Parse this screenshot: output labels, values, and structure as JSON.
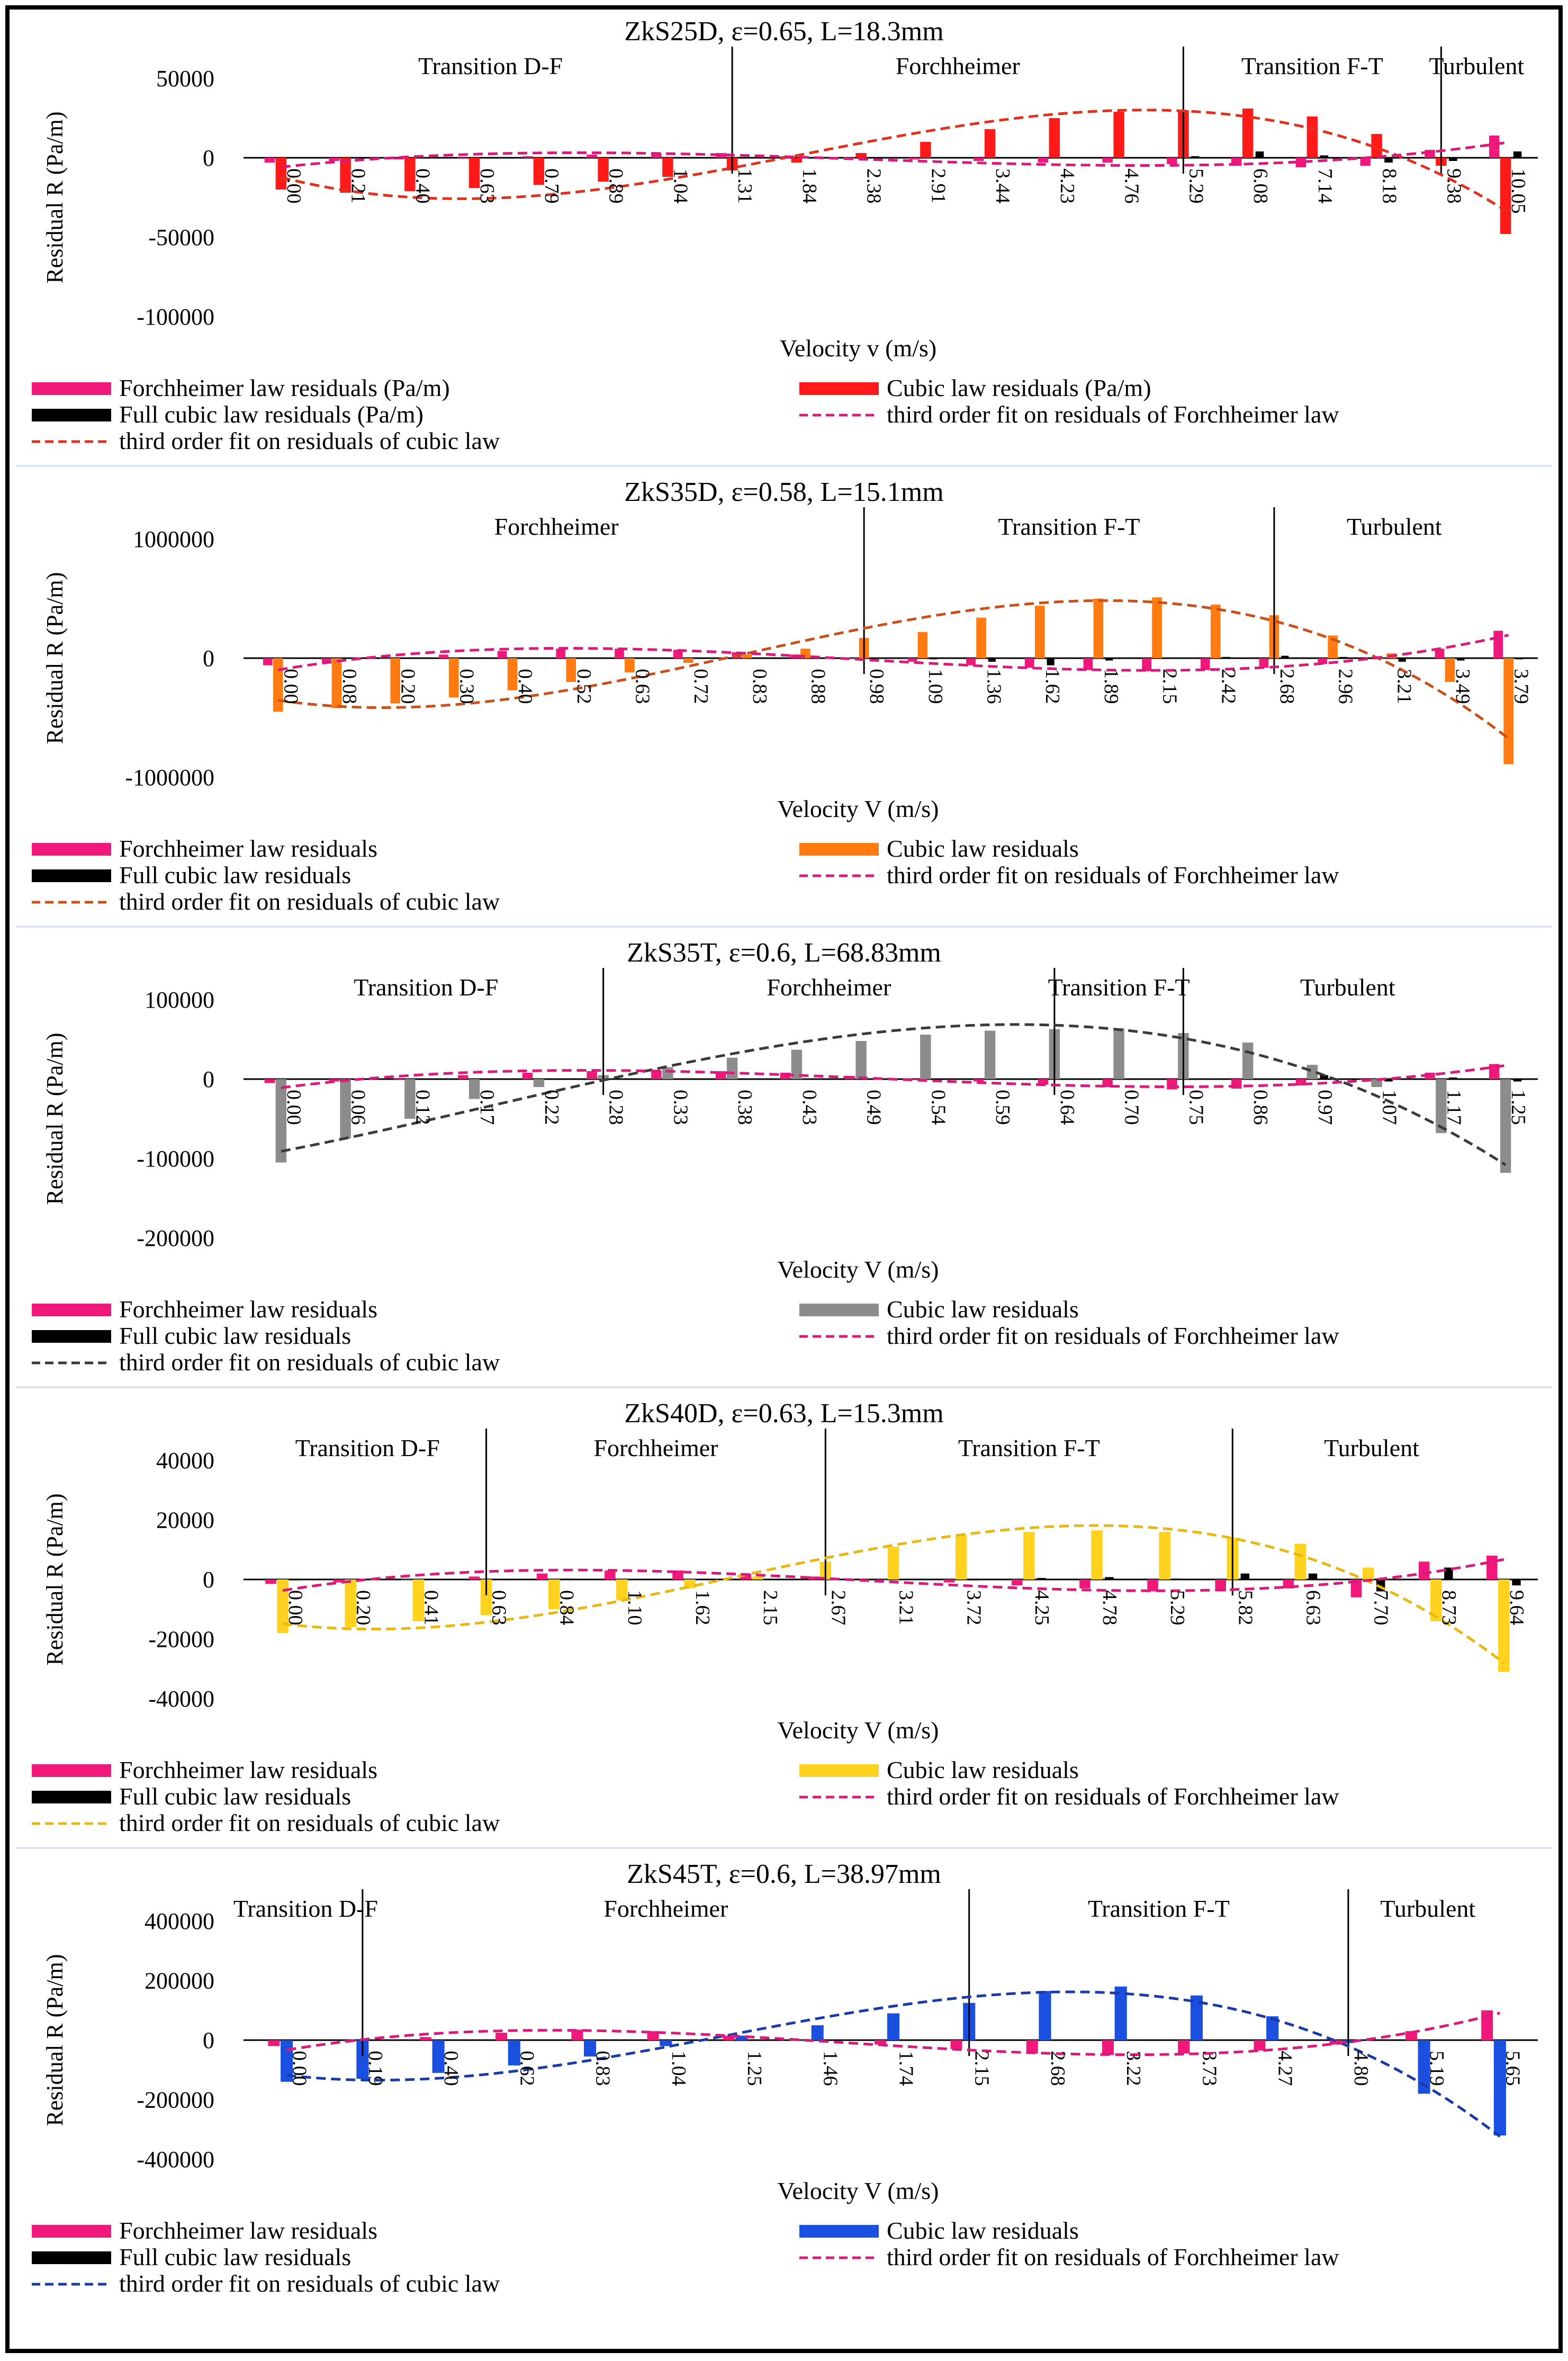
{
  "chart_data": [
    {
      "type": "bar",
      "title": "ZkS25D, ε=0.65, L=18.3mm",
      "xlabel": "Velocity v (m/s)",
      "ylabel": "Residual R (Pa/m)",
      "ylim": [
        -100000,
        50000
      ],
      "yticks": [
        "-100000",
        "-50000",
        "0",
        "50000"
      ],
      "categories": [
        "0.00",
        "0.21",
        "0.40",
        "0.63",
        "0.79",
        "0.89",
        "1.04",
        "1.31",
        "1.84",
        "2.38",
        "2.91",
        "3.44",
        "4.23",
        "4.76",
        "5.29",
        "6.08",
        "7.14",
        "8.18",
        "9.38",
        "10.05"
      ],
      "cubic_color": "#ff1a1a",
      "fit_color": "#e0301e",
      "regions": [
        {
          "label": "Transition D-F",
          "start": 0,
          "end": 7.5
        },
        {
          "label": "Forchheimer",
          "start": 7.5,
          "end": 14.5
        },
        {
          "label": "Transition F-T",
          "start": 14.5,
          "end": 18.5
        },
        {
          "label": "Turbulent",
          "start": 18.5,
          "end": 19.6
        }
      ],
      "series": [
        {
          "name": "Forchheimer law residuals (Pa/m)",
          "values": [
            -3000,
            -2000,
            -1000,
            0,
            1000,
            2000,
            3000,
            3000,
            1000,
            0,
            -1000,
            -2000,
            -3000,
            -3000,
            -4000,
            -5000,
            -6000,
            -5000,
            5000,
            14000
          ]
        },
        {
          "name": "Cubic law residuals (Pa/m)",
          "values": [
            -20000,
            -22000,
            -21000,
            -19000,
            -17000,
            -15000,
            -12000,
            -8000,
            -3000,
            3000,
            10000,
            18000,
            25000,
            29000,
            30000,
            31000,
            26000,
            15000,
            -5000,
            -48000
          ]
        },
        {
          "name": "Full cubic law residuals (Pa/m)",
          "values": [
            -500,
            -400,
            -300,
            -200,
            0,
            200,
            300,
            400,
            300,
            100,
            0,
            -200,
            -400,
            -500,
            1000,
            4000,
            1500,
            -3000,
            -2000,
            4000
          ]
        }
      ],
      "legend": {
        "forchheimer": "Forchheimer law residuals (Pa/m)",
        "cubic": "Cubic law residuals (Pa/m)",
        "full": "Full cubic law residuals (Pa/m)",
        "fit_forch": "third order fit on residuals of Forchheimer law",
        "fit_cubic": "third order fit on residuals of cubic law"
      }
    },
    {
      "type": "bar",
      "title": "ZkS35D, ε=0.58, L=15.1mm",
      "xlabel": "Velocity V (m/s)",
      "ylabel": "Residual R (Pa/m)",
      "ylim": [
        -1000000,
        1000000
      ],
      "yticks": [
        "-1000000",
        "0",
        "1000000"
      ],
      "categories": [
        "0.00",
        "0.08",
        "0.20",
        "0.30",
        "0.40",
        "0.52",
        "0.63",
        "0.72",
        "0.83",
        "0.88",
        "0.98",
        "1.09",
        "1.36",
        "1.62",
        "1.89",
        "2.15",
        "2.42",
        "2.68",
        "2.96",
        "3.21",
        "3.49",
        "3.79"
      ],
      "cubic_color": "#ff7a10",
      "fit_color": "#c8501a",
      "regions": [
        {
          "label": "Forchheimer",
          "start": 0,
          "end": 10.5
        },
        {
          "label": "Transition F-T",
          "start": 10.5,
          "end": 17.5
        },
        {
          "label": "Turbulent",
          "start": 17.5,
          "end": 21.6
        }
      ],
      "series": [
        {
          "name": "Forchheimer law residuals",
          "values": [
            -60000,
            -30000,
            0,
            30000,
            60000,
            80000,
            80000,
            70000,
            50000,
            30000,
            0,
            -30000,
            -60000,
            -80000,
            -100000,
            -110000,
            -100000,
            -80000,
            -50000,
            0,
            80000,
            230000
          ]
        },
        {
          "name": "Cubic law residuals",
          "values": [
            -450000,
            -420000,
            -380000,
            -330000,
            -270000,
            -200000,
            -120000,
            -40000,
            30000,
            80000,
            170000,
            220000,
            340000,
            440000,
            500000,
            510000,
            450000,
            360000,
            190000,
            40000,
            -200000,
            -890000
          ]
        },
        {
          "name": "Full cubic law residuals",
          "values": [
            -5000,
            -3000,
            0,
            3000,
            5000,
            6000,
            6000,
            4000,
            2000,
            0,
            -5000,
            -10000,
            -30000,
            -60000,
            -20000,
            0,
            10000,
            20000,
            10000,
            -30000,
            -20000,
            -10000
          ]
        }
      ],
      "legend": {
        "forchheimer": "Forchheimer law residuals",
        "cubic": "Cubic law residuals",
        "full": "Full cubic law residuals",
        "fit_forch": "third order fit on residuals of Forchheimer law",
        "fit_cubic": "third order fit on residuals of cubic law"
      }
    },
    {
      "type": "bar",
      "title": "ZkS35T, ε=0.6, L=68.83mm",
      "xlabel": "Velocity V (m/s)",
      "ylabel": "Residual R (Pa/m)",
      "ylim": [
        -200000,
        100000
      ],
      "yticks": [
        "-200000",
        "-100000",
        "0",
        "100000"
      ],
      "categories": [
        "0.00",
        "0.06",
        "0.12",
        "0.17",
        "0.22",
        "0.28",
        "0.33",
        "0.38",
        "0.43",
        "0.49",
        "0.54",
        "0.59",
        "0.64",
        "0.70",
        "0.75",
        "0.86",
        "0.97",
        "1.07",
        "1.17",
        "1.25"
      ],
      "cubic_color": "#8c8c8c",
      "fit_color": "#3a3a3a",
      "regions": [
        {
          "label": "Transition D-F",
          "start": 0,
          "end": 5.5
        },
        {
          "label": "Forchheimer",
          "start": 5.5,
          "end": 12.5
        },
        {
          "label": "Transition F-T",
          "start": 12.5,
          "end": 14.5
        },
        {
          "label": "Turbulent",
          "start": 14.5,
          "end": 19.6
        }
      ],
      "series": [
        {
          "name": "Forchheimer law residuals",
          "values": [
            -5000,
            -3000,
            0,
            5000,
            8000,
            10000,
            11000,
            10000,
            8000,
            4000,
            0,
            -3000,
            -7000,
            -10000,
            -13000,
            -12000,
            -8000,
            0,
            8000,
            19000
          ]
        },
        {
          "name": "Cubic law residuals",
          "values": [
            -105000,
            -75000,
            -50000,
            -25000,
            -10000,
            5000,
            15000,
            27000,
            37000,
            48000,
            56000,
            61000,
            63000,
            64000,
            58000,
            46000,
            18000,
            -10000,
            -68000,
            -118000
          ]
        },
        {
          "name": "Full cubic law residuals",
          "values": [
            -1000,
            -1000,
            -500,
            0,
            500,
            1000,
            1000,
            500,
            0,
            -500,
            -1000,
            -1000,
            -500,
            0,
            500,
            1000,
            5000,
            -3000,
            2000,
            -3000
          ]
        }
      ],
      "legend": {
        "forchheimer": "Forchheimer law residuals",
        "cubic": "Cubic law residuals",
        "full": "Full cubic law residuals",
        "fit_forch": "third order fit on residuals of Forchheimer law",
        "fit_cubic": "third order fit on residuals of cubic law"
      }
    },
    {
      "type": "bar",
      "title": "ZkS40D, ε=0.63, L=15.3mm",
      "xlabel": "Velocity V (m/s)",
      "ylabel": "Residual R (Pa/m)",
      "ylim": [
        -40000,
        40000
      ],
      "yticks": [
        "-40000",
        "-20000",
        "0",
        "20000",
        "40000"
      ],
      "categories": [
        "0.00",
        "0.20",
        "0.41",
        "0.63",
        "0.84",
        "1.10",
        "1.62",
        "2.15",
        "2.67",
        "3.21",
        "3.72",
        "4.25",
        "4.78",
        "5.29",
        "5.82",
        "6.63",
        "7.70",
        "8.73",
        "9.64"
      ],
      "cubic_color": "#ffd21f",
      "fit_color": "#e8b810",
      "regions": [
        {
          "label": "Transition D-F",
          "start": 0,
          "end": 3.5
        },
        {
          "label": "Forchheimer",
          "start": 3.5,
          "end": 8.5
        },
        {
          "label": "Transition F-T",
          "start": 8.5,
          "end": 14.5
        },
        {
          "label": "Turbulent",
          "start": 14.5,
          "end": 18.6
        }
      ],
      "series": [
        {
          "name": "Forchheimer law residuals",
          "values": [
            -1500,
            -1000,
            0,
            1000,
            2000,
            3000,
            3000,
            2000,
            1000,
            0,
            -1000,
            -2000,
            -3000,
            -4000,
            -4000,
            -3000,
            -6000,
            6000,
            8000
          ]
        },
        {
          "name": "Cubic law residuals",
          "values": [
            -18000,
            -16000,
            -14000,
            -12000,
            -10000,
            -7000,
            -3000,
            1000,
            6000,
            11000,
            15000,
            16000,
            16500,
            16000,
            14000,
            12000,
            4000,
            -14000,
            -31000
          ]
        },
        {
          "name": "Full cubic law residuals",
          "values": [
            -300,
            -200,
            0,
            200,
            300,
            200,
            100,
            0,
            -100,
            -200,
            -300,
            500,
            800,
            300,
            2000,
            2000,
            -4000,
            4000,
            -2000
          ]
        }
      ],
      "legend": {
        "forchheimer": "Forchheimer law residuals",
        "cubic": "Cubic law residuals",
        "full": "Full cubic law residuals",
        "fit_forch": "third order fit on residuals of Forchheimer law",
        "fit_cubic": "third order fit on residuals of cubic law"
      }
    },
    {
      "type": "bar",
      "title": "ZkS45T, ε=0.6, L=38.97mm",
      "xlabel": "Velocity V (m/s)",
      "ylabel": "Residual R (Pa/m)",
      "ylim": [
        -400000,
        400000
      ],
      "yticks": [
        "-400000",
        "-200000",
        "0",
        "200000",
        "400000"
      ],
      "categories": [
        "0.00",
        "0.19",
        "0.40",
        "0.62",
        "0.83",
        "1.04",
        "1.25",
        "1.46",
        "1.74",
        "2.15",
        "2.68",
        "3.22",
        "3.73",
        "4.27",
        "4.80",
        "5.19",
        "5.65"
      ],
      "cubic_color": "#1a4fe0",
      "fit_color": "#1a3aa8",
      "regions": [
        {
          "label": "Transition D-F",
          "start": 0,
          "end": 1.5
        },
        {
          "label": "Forchheimer",
          "start": 1.5,
          "end": 9.5
        },
        {
          "label": "Transition F-T",
          "start": 9.5,
          "end": 14.5
        },
        {
          "label": "Turbulent",
          "start": 14.5,
          "end": 16.6
        }
      ],
      "series": [
        {
          "name": "Forchheimer law residuals",
          "values": [
            -20000,
            -5000,
            10000,
            25000,
            35000,
            30000,
            15000,
            0,
            -15000,
            -30000,
            -45000,
            -50000,
            -45000,
            -35000,
            -15000,
            30000,
            100000
          ]
        },
        {
          "name": "Cubic law residuals",
          "values": [
            -140000,
            -130000,
            -110000,
            -85000,
            -55000,
            -20000,
            15000,
            50000,
            90000,
            125000,
            165000,
            180000,
            150000,
            80000,
            -10000,
            -180000,
            -320000
          ]
        },
        {
          "name": "Full cubic law residuals",
          "values": [
            -2000,
            -1000,
            0,
            1000,
            2000,
            1000,
            0,
            -1000,
            -2000,
            -1000,
            0,
            1000,
            2000,
            1000,
            0,
            -1000,
            -2000
          ]
        }
      ],
      "legend": {
        "forchheimer": "Forchheimer law residuals",
        "cubic": "Cubic law residuals",
        "full": "Full cubic law residuals",
        "fit_forch": "third order fit on residuals of Forchheimer law",
        "fit_cubic": "third order fit on residuals of cubic law"
      }
    }
  ]
}
